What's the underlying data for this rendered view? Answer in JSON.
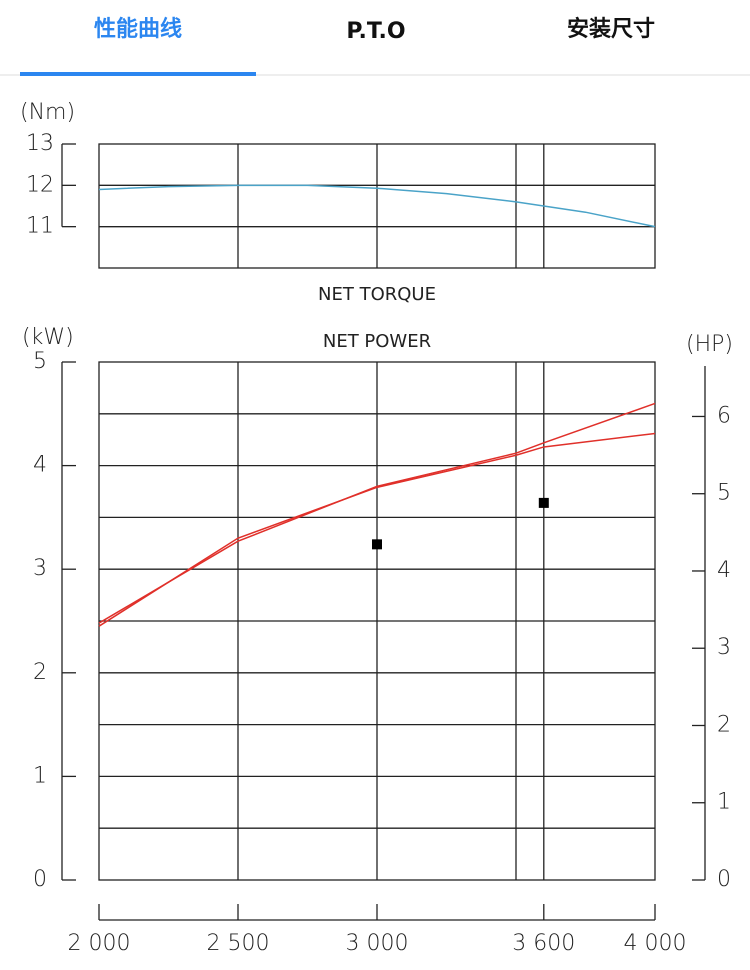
{
  "tabs": [
    "性能曲线",
    "P.T.O",
    "安装尺寸"
  ],
  "active_tab": 0,
  "chart_data": [
    {
      "type": "line",
      "title": "NET TORQUE",
      "y_label": "(Nm)",
      "x": [
        2000,
        2250,
        2500,
        2750,
        3000,
        3250,
        3500,
        3750,
        4000
      ],
      "series": [
        {
          "color": "#4aa3c8",
          "values": [
            11.9,
            11.97,
            12.0,
            12.0,
            11.93,
            11.8,
            11.6,
            11.35,
            11.0
          ]
        }
      ],
      "xlim": [
        2000,
        4000
      ],
      "xgrid": [
        2500,
        3000,
        3500,
        3600
      ],
      "ylim": [
        10,
        13
      ],
      "yticks": [
        11,
        12,
        13
      ],
      "ygrid": [
        11,
        12
      ]
    },
    {
      "type": "line",
      "title": "NET POWER",
      "y_label": "(kW)",
      "y2_label": "(HP)",
      "x": [
        2000,
        2500,
        3000,
        3500,
        3600,
        4000
      ],
      "series": [
        {
          "color": "#e0302a",
          "values": [
            2.45,
            3.3,
            3.79,
            4.1,
            4.18,
            4.31
          ]
        },
        {
          "color": "#e0302a",
          "values": [
            2.48,
            3.27,
            3.8,
            4.12,
            4.22,
            4.6
          ]
        }
      ],
      "points": {
        "color": "#000000",
        "x": [
          3000,
          3600
        ],
        "values": [
          3.24,
          3.64
        ]
      },
      "xlim": [
        2000,
        4000
      ],
      "xticks": [
        {
          "value": 2000,
          "label": "2 000"
        },
        {
          "value": 2500,
          "label": "2 500"
        },
        {
          "value": 3000,
          "label": "3 000"
        },
        {
          "value": 3600,
          "label": "3 600"
        },
        {
          "value": 4000,
          "label": "4 000"
        }
      ],
      "xgrid": [
        2500,
        3000,
        3500,
        3600
      ],
      "ylim": [
        0,
        5
      ],
      "yticks": [
        0,
        1,
        2,
        3,
        4,
        5
      ],
      "ygrid": [
        0.5,
        1,
        1.5,
        2,
        2.5,
        3,
        3.5,
        4,
        4.5
      ],
      "y2lim": [
        0,
        6.705
      ],
      "y2ticks": [
        0,
        1,
        2,
        3,
        4,
        5,
        6
      ]
    }
  ]
}
